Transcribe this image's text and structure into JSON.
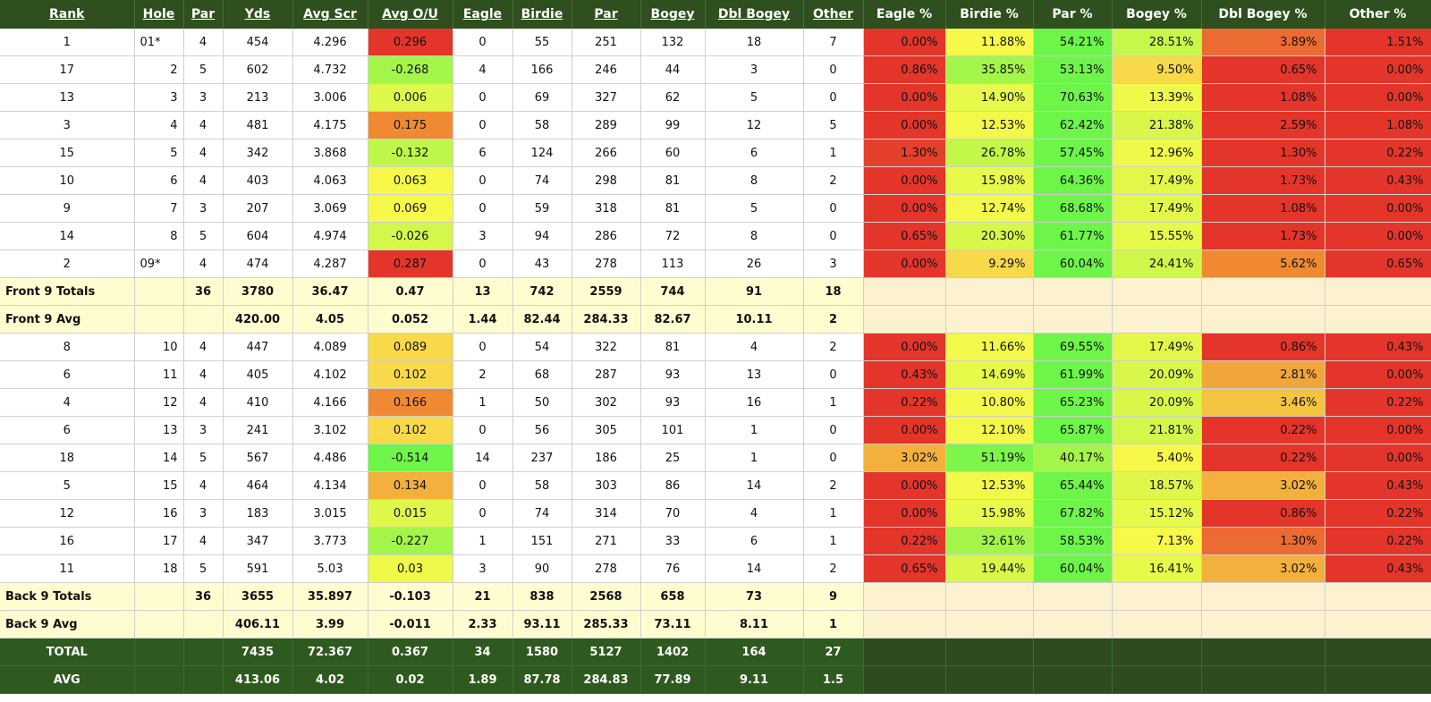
{
  "headers": [
    "Rank",
    "Hole",
    "Par",
    "Yds",
    "Avg Scr",
    "Avg O/U",
    "Eagle",
    "Birdie",
    "Par",
    "Bogey",
    "Dbl Bogey",
    "Other"
  ],
  "pct_headers": [
    "Eagle %",
    "Birdie %",
    "Par %",
    "Bogey %",
    "Dbl Bogey %",
    "Other %"
  ],
  "front": [
    {
      "rank": "1",
      "hole": "01*",
      "par": "4",
      "yds": "454",
      "avg": "4.296",
      "ou": "0.296",
      "ou_color": "#e3352a",
      "eagle": "0",
      "birdie": "55",
      "parc": "251",
      "bogey": "132",
      "dbl": "18",
      "other": "7",
      "pct": [
        {
          "v": "0.00%",
          "c": "#e3352a"
        },
        {
          "v": "11.88%",
          "c": "#f7f94a"
        },
        {
          "v": "54.21%",
          "c": "#6ef54a"
        },
        {
          "v": "28.51%",
          "c": "#c6f74a"
        },
        {
          "v": "3.89%",
          "c": "#ec6b33"
        },
        {
          "v": "1.51%",
          "c": "#e3352a"
        }
      ]
    },
    {
      "rank": "17",
      "hole": "2",
      "par": "5",
      "yds": "602",
      "avg": "4.732",
      "ou": "-0.268",
      "ou_color": "#a4f54a",
      "eagle": "4",
      "birdie": "166",
      "parc": "246",
      "bogey": "44",
      "dbl": "3",
      "other": "0",
      "pct": [
        {
          "v": "0.86%",
          "c": "#e3352a"
        },
        {
          "v": "35.85%",
          "c": "#a4f54a"
        },
        {
          "v": "53.13%",
          "c": "#6ef54a"
        },
        {
          "v": "9.50%",
          "c": "#f7d94a"
        },
        {
          "v": "0.65%",
          "c": "#e3352a"
        },
        {
          "v": "0.00%",
          "c": "#e3352a"
        }
      ]
    },
    {
      "rank": "13",
      "hole": "3",
      "par": "3",
      "yds": "213",
      "avg": "3.006",
      "ou": "0.006",
      "ou_color": "#dff74a",
      "eagle": "0",
      "birdie": "69",
      "parc": "327",
      "bogey": "62",
      "dbl": "5",
      "other": "0",
      "pct": [
        {
          "v": "0.00%",
          "c": "#e3352a"
        },
        {
          "v": "14.90%",
          "c": "#e7f94a"
        },
        {
          "v": "70.63%",
          "c": "#6ef54a"
        },
        {
          "v": "13.39%",
          "c": "#eef94a"
        },
        {
          "v": "1.08%",
          "c": "#e3352a"
        },
        {
          "v": "0.00%",
          "c": "#e3352a"
        }
      ]
    },
    {
      "rank": "3",
      "hole": "4",
      "par": "4",
      "yds": "481",
      "avg": "4.175",
      "ou": "0.175",
      "ou_color": "#ef8a33",
      "eagle": "0",
      "birdie": "58",
      "parc": "289",
      "bogey": "99",
      "dbl": "12",
      "other": "5",
      "pct": [
        {
          "v": "0.00%",
          "c": "#e3352a"
        },
        {
          "v": "12.53%",
          "c": "#f2f94a"
        },
        {
          "v": "62.42%",
          "c": "#6ef54a"
        },
        {
          "v": "21.38%",
          "c": "#d8f74a"
        },
        {
          "v": "2.59%",
          "c": "#e3352a"
        },
        {
          "v": "1.08%",
          "c": "#e3352a"
        }
      ]
    },
    {
      "rank": "15",
      "hole": "5",
      "par": "4",
      "yds": "342",
      "avg": "3.868",
      "ou": "-0.132",
      "ou_color": "#bef74a",
      "eagle": "6",
      "birdie": "124",
      "parc": "266",
      "bogey": "60",
      "dbl": "6",
      "other": "1",
      "pct": [
        {
          "v": "1.30%",
          "c": "#e5402c"
        },
        {
          "v": "26.78%",
          "c": "#c3f74a"
        },
        {
          "v": "57.45%",
          "c": "#6ef54a"
        },
        {
          "v": "12.96%",
          "c": "#eef94a"
        },
        {
          "v": "1.30%",
          "c": "#e3352a"
        },
        {
          "v": "0.22%",
          "c": "#e3352a"
        }
      ]
    },
    {
      "rank": "10",
      "hole": "6",
      "par": "4",
      "yds": "403",
      "avg": "4.063",
      "ou": "0.063",
      "ou_color": "#f7f94a",
      "eagle": "0",
      "birdie": "74",
      "parc": "298",
      "bogey": "81",
      "dbl": "8",
      "other": "2",
      "pct": [
        {
          "v": "0.00%",
          "c": "#e3352a"
        },
        {
          "v": "15.98%",
          "c": "#e7f94a"
        },
        {
          "v": "64.36%",
          "c": "#6ef54a"
        },
        {
          "v": "17.49%",
          "c": "#e3f74a"
        },
        {
          "v": "1.73%",
          "c": "#e3352a"
        },
        {
          "v": "0.43%",
          "c": "#e3352a"
        }
      ]
    },
    {
      "rank": "9",
      "hole": "7",
      "par": "3",
      "yds": "207",
      "avg": "3.069",
      "ou": "0.069",
      "ou_color": "#f7f94a",
      "eagle": "0",
      "birdie": "59",
      "parc": "318",
      "bogey": "81",
      "dbl": "5",
      "other": "0",
      "pct": [
        {
          "v": "0.00%",
          "c": "#e3352a"
        },
        {
          "v": "12.74%",
          "c": "#f2f94a"
        },
        {
          "v": "68.68%",
          "c": "#6ef54a"
        },
        {
          "v": "17.49%",
          "c": "#e3f74a"
        },
        {
          "v": "1.08%",
          "c": "#e3352a"
        },
        {
          "v": "0.00%",
          "c": "#e3352a"
        }
      ]
    },
    {
      "rank": "14",
      "hole": "8",
      "par": "5",
      "yds": "604",
      "avg": "4.974",
      "ou": "-0.026",
      "ou_color": "#d3f74a",
      "eagle": "3",
      "birdie": "94",
      "parc": "286",
      "bogey": "72",
      "dbl": "8",
      "other": "0",
      "pct": [
        {
          "v": "0.65%",
          "c": "#e3352a"
        },
        {
          "v": "20.30%",
          "c": "#d8f74a"
        },
        {
          "v": "61.77%",
          "c": "#6ef54a"
        },
        {
          "v": "15.55%",
          "c": "#e7f94a"
        },
        {
          "v": "1.73%",
          "c": "#e3352a"
        },
        {
          "v": "0.00%",
          "c": "#e3352a"
        }
      ]
    },
    {
      "rank": "2",
      "hole": "09*",
      "par": "4",
      "yds": "474",
      "avg": "4.287",
      "ou": "0.287",
      "ou_color": "#e3352a",
      "eagle": "0",
      "birdie": "43",
      "parc": "278",
      "bogey": "113",
      "dbl": "26",
      "other": "3",
      "pct": [
        {
          "v": "0.00%",
          "c": "#e3352a"
        },
        {
          "v": "9.29%",
          "c": "#f7d94a"
        },
        {
          "v": "60.04%",
          "c": "#6ef54a"
        },
        {
          "v": "24.41%",
          "c": "#cef74a"
        },
        {
          "v": "5.62%",
          "c": "#ef8a33"
        },
        {
          "v": "0.65%",
          "c": "#e3352a"
        }
      ]
    }
  ],
  "front_totals": {
    "label": "Front 9 Totals",
    "par": "36",
    "yds": "3780",
    "avg": "36.47",
    "ou": "0.47",
    "eagle": "13",
    "birdie": "742",
    "parc": "2559",
    "bogey": "744",
    "dbl": "91",
    "other": "18"
  },
  "front_avg": {
    "label": "Front 9 Avg",
    "par": "",
    "yds": "420.00",
    "avg": "4.05",
    "ou": "0.052",
    "eagle": "1.44",
    "birdie": "82.44",
    "parc": "284.33",
    "bogey": "82.67",
    "dbl": "10.11",
    "other": "2"
  },
  "back": [
    {
      "rank": "8",
      "hole": "10",
      "par": "4",
      "yds": "447",
      "avg": "4.089",
      "ou": "0.089",
      "ou_color": "#f7d94a",
      "eagle": "0",
      "birdie": "54",
      "parc": "322",
      "bogey": "81",
      "dbl": "4",
      "other": "2",
      "pct": [
        {
          "v": "0.00%",
          "c": "#e3352a"
        },
        {
          "v": "11.66%",
          "c": "#f2f94a"
        },
        {
          "v": "69.55%",
          "c": "#6ef54a"
        },
        {
          "v": "17.49%",
          "c": "#e3f74a"
        },
        {
          "v": "0.86%",
          "c": "#e3352a"
        },
        {
          "v": "0.43%",
          "c": "#e3352a"
        }
      ]
    },
    {
      "rank": "6",
      "hole": "11",
      "par": "4",
      "yds": "405",
      "avg": "4.102",
      "ou": "0.102",
      "ou_color": "#f7d94a",
      "eagle": "2",
      "birdie": "68",
      "parc": "287",
      "bogey": "93",
      "dbl": "13",
      "other": "0",
      "pct": [
        {
          "v": "0.43%",
          "c": "#e3352a"
        },
        {
          "v": "14.69%",
          "c": "#e7f94a"
        },
        {
          "v": "61.99%",
          "c": "#6ef54a"
        },
        {
          "v": "20.09%",
          "c": "#d8f74a"
        },
        {
          "v": "2.81%",
          "c": "#f0a63a"
        },
        {
          "v": "0.00%",
          "c": "#e3352a"
        }
      ]
    },
    {
      "rank": "4",
      "hole": "12",
      "par": "4",
      "yds": "410",
      "avg": "4.166",
      "ou": "0.166",
      "ou_color": "#ef8a33",
      "eagle": "1",
      "birdie": "50",
      "parc": "302",
      "bogey": "93",
      "dbl": "16",
      "other": "1",
      "pct": [
        {
          "v": "0.22%",
          "c": "#e3352a"
        },
        {
          "v": "10.80%",
          "c": "#f2f94a"
        },
        {
          "v": "65.23%",
          "c": "#6ef54a"
        },
        {
          "v": "20.09%",
          "c": "#d8f74a"
        },
        {
          "v": "3.46%",
          "c": "#f3c440"
        },
        {
          "v": "0.22%",
          "c": "#e3352a"
        }
      ]
    },
    {
      "rank": "6",
      "hole": "13",
      "par": "3",
      "yds": "241",
      "avg": "3.102",
      "ou": "0.102",
      "ou_color": "#f7d94a",
      "eagle": "0",
      "birdie": "56",
      "parc": "305",
      "bogey": "101",
      "dbl": "1",
      "other": "0",
      "pct": [
        {
          "v": "0.00%",
          "c": "#e3352a"
        },
        {
          "v": "12.10%",
          "c": "#f2f94a"
        },
        {
          "v": "65.87%",
          "c": "#6ef54a"
        },
        {
          "v": "21.81%",
          "c": "#d3f74a"
        },
        {
          "v": "0.22%",
          "c": "#e3352a"
        },
        {
          "v": "0.00%",
          "c": "#e3352a"
        }
      ]
    },
    {
      "rank": "18",
      "hole": "14",
      "par": "5",
      "yds": "567",
      "avg": "4.486",
      "ou": "-0.514",
      "ou_color": "#6ef54a",
      "eagle": "14",
      "birdie": "237",
      "parc": "186",
      "bogey": "25",
      "dbl": "1",
      "other": "0",
      "pct": [
        {
          "v": "3.02%",
          "c": "#f3b03c"
        },
        {
          "v": "51.19%",
          "c": "#7df54a"
        },
        {
          "v": "40.17%",
          "c": "#a4f54a"
        },
        {
          "v": "5.40%",
          "c": "#f7f94a"
        },
        {
          "v": "0.22%",
          "c": "#e3352a"
        },
        {
          "v": "0.00%",
          "c": "#e3352a"
        }
      ]
    },
    {
      "rank": "5",
      "hole": "15",
      "par": "4",
      "yds": "464",
      "avg": "4.134",
      "ou": "0.134",
      "ou_color": "#f3b03c",
      "eagle": "0",
      "birdie": "58",
      "parc": "303",
      "bogey": "86",
      "dbl": "14",
      "other": "2",
      "pct": [
        {
          "v": "0.00%",
          "c": "#e3352a"
        },
        {
          "v": "12.53%",
          "c": "#f2f94a"
        },
        {
          "v": "65.44%",
          "c": "#6ef54a"
        },
        {
          "v": "18.57%",
          "c": "#dff74a"
        },
        {
          "v": "3.02%",
          "c": "#f3b03c"
        },
        {
          "v": "0.43%",
          "c": "#e3352a"
        }
      ]
    },
    {
      "rank": "12",
      "hole": "16",
      "par": "3",
      "yds": "183",
      "avg": "3.015",
      "ou": "0.015",
      "ou_color": "#dff74a",
      "eagle": "0",
      "birdie": "74",
      "parc": "314",
      "bogey": "70",
      "dbl": "4",
      "other": "1",
      "pct": [
        {
          "v": "0.00%",
          "c": "#e3352a"
        },
        {
          "v": "15.98%",
          "c": "#e7f94a"
        },
        {
          "v": "67.82%",
          "c": "#6ef54a"
        },
        {
          "v": "15.12%",
          "c": "#e7f94a"
        },
        {
          "v": "0.86%",
          "c": "#e3352a"
        },
        {
          "v": "0.22%",
          "c": "#e3352a"
        }
      ]
    },
    {
      "rank": "16",
      "hole": "17",
      "par": "4",
      "yds": "347",
      "avg": "3.773",
      "ou": "-0.227",
      "ou_color": "#a4f54a",
      "eagle": "1",
      "birdie": "151",
      "parc": "271",
      "bogey": "33",
      "dbl": "6",
      "other": "1",
      "pct": [
        {
          "v": "0.22%",
          "c": "#e3352a"
        },
        {
          "v": "32.61%",
          "c": "#a4f54a"
        },
        {
          "v": "58.53%",
          "c": "#6ef54a"
        },
        {
          "v": "7.13%",
          "c": "#f7f94a"
        },
        {
          "v": "1.30%",
          "c": "#ec6b33"
        },
        {
          "v": "0.22%",
          "c": "#e3352a"
        }
      ]
    },
    {
      "rank": "11",
      "hole": "18",
      "par": "5",
      "yds": "591",
      "avg": "5.03",
      "ou": "0.03",
      "ou_color": "#eef94a",
      "eagle": "3",
      "birdie": "90",
      "parc": "278",
      "bogey": "76",
      "dbl": "14",
      "other": "2",
      "pct": [
        {
          "v": "0.65%",
          "c": "#e3352a"
        },
        {
          "v": "19.44%",
          "c": "#d8f74a"
        },
        {
          "v": "60.04%",
          "c": "#6ef54a"
        },
        {
          "v": "16.41%",
          "c": "#e7f94a"
        },
        {
          "v": "3.02%",
          "c": "#f3b03c"
        },
        {
          "v": "0.43%",
          "c": "#e3352a"
        }
      ]
    }
  ],
  "back_totals": {
    "label": "Back 9 Totals",
    "par": "36",
    "yds": "3655",
    "avg": "35.897",
    "ou": "-0.103",
    "eagle": "21",
    "birdie": "838",
    "parc": "2568",
    "bogey": "658",
    "dbl": "73",
    "other": "9"
  },
  "back_avg": {
    "label": "Back 9 Avg",
    "par": "",
    "yds": "406.11",
    "avg": "3.99",
    "ou": "-0.011",
    "eagle": "2.33",
    "birdie": "93.11",
    "parc": "285.33",
    "bogey": "73.11",
    "dbl": "8.11",
    "other": "1"
  },
  "total": {
    "label": "TOTAL",
    "par": "",
    "yds": "7435",
    "avg": "72.367",
    "ou": "0.367",
    "eagle": "34",
    "birdie": "1580",
    "parc": "5127",
    "bogey": "1402",
    "dbl": "164",
    "other": "27"
  },
  "avg": {
    "label": "AVG",
    "par": "",
    "yds": "413.06",
    "avg": "4.02",
    "ou": "0.02",
    "eagle": "1.89",
    "birdie": "87.78",
    "parc": "284.83",
    "bogey": "77.89",
    "dbl": "9.11",
    "other": "1.5"
  }
}
